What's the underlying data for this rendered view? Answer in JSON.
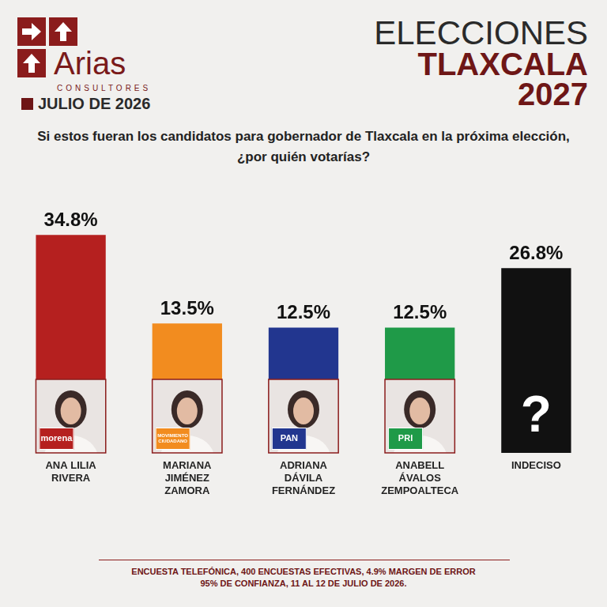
{
  "chart_data": {
    "type": "bar",
    "title": "ELECCIONES",
    "subtitle": "TLAXCALA 2027",
    "annotations": {
      "brand": "Arias",
      "brand_tagline": "CONSULTORES",
      "date": "JULIO DE 2026",
      "question": "Si estos fueran los candidatos para gobernador de Tlaxcala en la próxima elección, ¿por quién votarías?",
      "note": [
        "ENCUESTA TELEFÓNICA, 400 ENCUESTAS EFECTIVAS, 4.9%  MARGEN DE ERROR",
        "95% DE CONFIANZA, 11 AL 12 DE JULIO DE 2026."
      ],
      "parties": [
        "morena",
        "MOVIMIENTO CIUDADANO",
        "PAN",
        "PRI",
        null
      ],
      "undecided_mark": "?"
    },
    "categories": [
      "ANA LILIA RIVERA",
      "MARIANA JIMÉNEZ ZAMORA",
      "ADRIANA DÁVILA FERNÁNDEZ",
      "ANABELL ÁVALOS ZEMPOALTECA",
      "INDECISO"
    ],
    "values": [
      34.8,
      13.5,
      12.5,
      12.5,
      26.8
    ],
    "value_labels": [
      "34.8%",
      "13.5%",
      "12.5%",
      "12.5%",
      "26.8%"
    ],
    "colors": [
      "#b5201f",
      "#f28c1f",
      "#22368f",
      "#1f9a48",
      "#111111"
    ],
    "ylim": [
      0,
      40
    ],
    "data_labels": true,
    "tick_labels": false,
    "grid": false
  }
}
